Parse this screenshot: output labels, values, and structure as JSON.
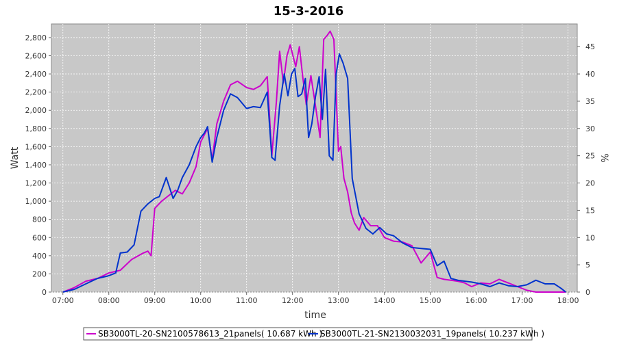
{
  "chart_data": {
    "type": "line",
    "title": "15-3-2016",
    "xlabel": "time",
    "ylabel": "Watt",
    "y2label": "%",
    "xlim": [
      6.75,
      18.2
    ],
    "ylim": [
      0,
      2950
    ],
    "y2lim": [
      0,
      49.17
    ],
    "x_ticks": [
      7,
      8,
      9,
      10,
      11,
      12,
      13,
      14,
      15,
      16,
      17,
      18
    ],
    "x_tick_labels": [
      "07:00",
      "08:00",
      "09:00",
      "10:00",
      "11:00",
      "12:00",
      "13:00",
      "14:00",
      "15:00",
      "16:00",
      "17:00",
      "18:00"
    ],
    "y_ticks": [
      0,
      200,
      400,
      600,
      800,
      1000,
      1200,
      1400,
      1600,
      1800,
      2000,
      2200,
      2400,
      2600,
      2800
    ],
    "y_tick_labels": [
      "0",
      "200",
      "400",
      "600",
      "800",
      "1,000",
      "1,200",
      "1,400",
      "1,600",
      "1,800",
      "2,000",
      "2,200",
      "2,400",
      "2,600",
      "2,800"
    ],
    "y2_ticks": [
      0,
      5,
      10,
      15,
      20,
      25,
      30,
      35,
      40,
      45
    ],
    "y2_tick_labels": [
      "0",
      "5",
      "10",
      "15",
      "20",
      "25",
      "30",
      "35",
      "40",
      "45"
    ],
    "grid": true,
    "legend_position": "bottom",
    "series": [
      {
        "name": "SB3000TL-20-SN2100578613_21panels( 10.687 kWh )",
        "color": "#cc00cc",
        "x": [
          7.0,
          7.25,
          7.5,
          7.75,
          8.0,
          8.25,
          8.5,
          8.75,
          8.85,
          8.92,
          9.0,
          9.15,
          9.3,
          9.45,
          9.6,
          9.75,
          9.9,
          10.0,
          10.15,
          10.25,
          10.35,
          10.5,
          10.65,
          10.8,
          11.0,
          11.15,
          11.3,
          11.45,
          11.55,
          11.65,
          11.72,
          11.8,
          11.88,
          11.95,
          12.0,
          12.07,
          12.15,
          12.22,
          12.3,
          12.4,
          12.5,
          12.6,
          12.68,
          12.75,
          12.82,
          12.9,
          13.0,
          13.05,
          13.12,
          13.2,
          13.28,
          13.35,
          13.45,
          13.55,
          13.7,
          13.85,
          14.0,
          14.2,
          14.4,
          14.6,
          14.8,
          15.0,
          15.15,
          15.3,
          15.45,
          15.6,
          15.75,
          15.9,
          16.1,
          16.3,
          16.5,
          16.7,
          16.9,
          17.1,
          17.3,
          17.5,
          17.7,
          17.85,
          17.95
        ],
        "values": [
          0,
          50,
          120,
          150,
          210,
          240,
          360,
          430,
          450,
          400,
          920,
          1000,
          1060,
          1120,
          1080,
          1200,
          1380,
          1650,
          1800,
          1450,
          1850,
          2100,
          2280,
          2320,
          2250,
          2230,
          2270,
          2370,
          1500,
          2100,
          2650,
          2300,
          2600,
          2720,
          2620,
          2480,
          2700,
          2380,
          2060,
          2380,
          2050,
          1700,
          2780,
          2820,
          2870,
          2780,
          1550,
          1600,
          1250,
          1100,
          870,
          760,
          680,
          820,
          730,
          730,
          600,
          560,
          550,
          510,
          320,
          440,
          160,
          140,
          130,
          120,
          100,
          60,
          100,
          90,
          140,
          100,
          60,
          20,
          0,
          0,
          0,
          0,
          0
        ]
      },
      {
        "name": "SB3000TL-21-SN2130032031_19panels( 10.237 kWh )",
        "color": "#0033cc",
        "x": [
          7.0,
          7.25,
          7.5,
          7.75,
          8.0,
          8.15,
          8.25,
          8.4,
          8.55,
          8.7,
          8.85,
          9.0,
          9.1,
          9.25,
          9.4,
          9.5,
          9.6,
          9.75,
          9.9,
          10.0,
          10.08,
          10.15,
          10.25,
          10.35,
          10.5,
          10.65,
          10.8,
          11.0,
          11.15,
          11.3,
          11.45,
          11.55,
          11.62,
          11.72,
          11.82,
          11.9,
          11.98,
          12.05,
          12.12,
          12.2,
          12.28,
          12.35,
          12.42,
          12.5,
          12.58,
          12.65,
          12.72,
          12.8,
          12.88,
          12.95,
          13.02,
          13.1,
          13.2,
          13.3,
          13.45,
          13.6,
          13.75,
          13.9,
          14.05,
          14.2,
          14.4,
          14.6,
          14.8,
          15.0,
          15.15,
          15.3,
          15.45,
          15.6,
          15.75,
          15.9,
          16.1,
          16.3,
          16.5,
          16.7,
          16.9,
          17.1,
          17.3,
          17.5,
          17.7,
          17.85,
          17.95
        ],
        "values": [
          0,
          30,
          90,
          150,
          180,
          210,
          430,
          440,
          520,
          890,
          970,
          1030,
          1050,
          1260,
          1030,
          1120,
          1260,
          1400,
          1600,
          1700,
          1750,
          1820,
          1430,
          1700,
          2000,
          2180,
          2140,
          2020,
          2040,
          2030,
          2200,
          1480,
          1450,
          2050,
          2400,
          2160,
          2400,
          2460,
          2150,
          2180,
          2350,
          1700,
          1850,
          2150,
          2370,
          1900,
          2450,
          1500,
          1450,
          2400,
          2620,
          2520,
          2350,
          1250,
          860,
          700,
          640,
          710,
          640,
          620,
          540,
          490,
          480,
          470,
          290,
          340,
          150,
          130,
          120,
          110,
          90,
          60,
          100,
          70,
          60,
          80,
          130,
          90,
          90,
          40,
          0
        ]
      }
    ]
  }
}
